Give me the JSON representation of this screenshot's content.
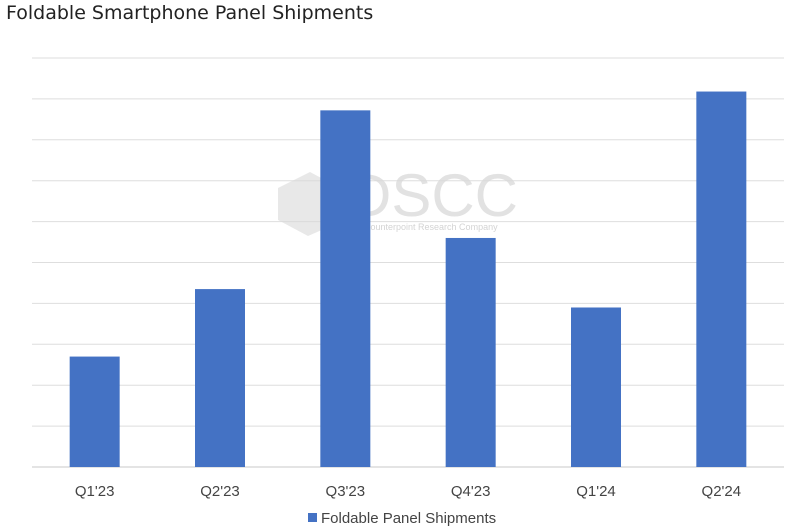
{
  "chart_data": {
    "type": "bar",
    "title": "Foldable Smartphone Panel Shipments",
    "categories": [
      "Q1'23",
      "Q2'23",
      "Q3'23",
      "Q4'23",
      "Q1'24",
      "Q2'24"
    ],
    "series": [
      {
        "name": "Foldable Panel Shipments",
        "values": [
          2.7,
          4.35,
          8.72,
          5.6,
          3.9,
          9.18
        ]
      }
    ],
    "ylim": [
      0,
      10
    ],
    "grid": true,
    "y_tick_labels_shown": false,
    "legend_position": "bottom",
    "color": "#4472c4"
  },
  "watermark": {
    "logo_text": "DSCC",
    "tagline": "A Counterpoint Research Company"
  }
}
